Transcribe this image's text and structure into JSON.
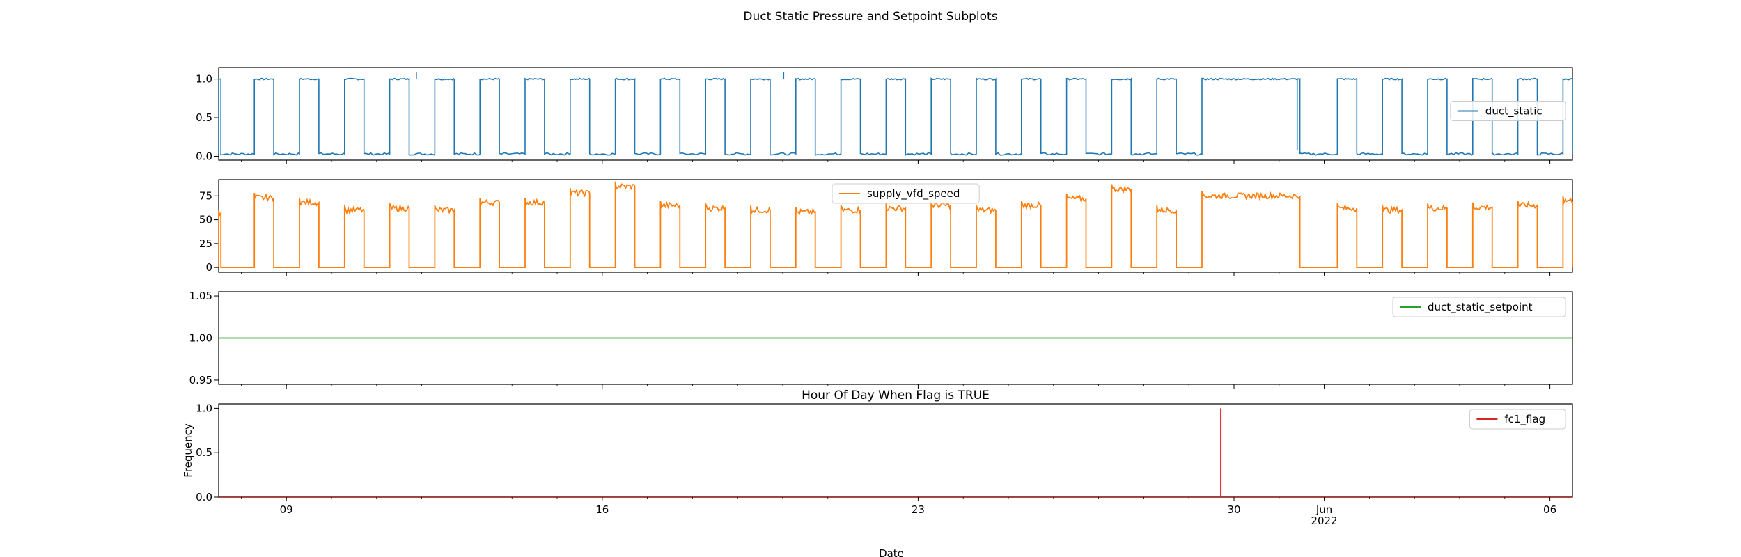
{
  "figure": {
    "suptitle": "Duct Static Pressure and Setpoint Subplots",
    "xlabel": "Date"
  },
  "colors": {
    "duct_static": "#1f77b4",
    "supply_vfd_speed": "#ff7f0e",
    "duct_static_setpoint": "#2ca02c",
    "fc1_flag": "#d62728"
  },
  "chart_data": [
    {
      "type": "line",
      "series": [
        {
          "name": "duct_static"
        }
      ],
      "ylim": [
        -0.05,
        1.15
      ],
      "yticks": [
        "0.0",
        "0.5",
        "1.0"
      ],
      "pattern": {
        "on_value": 1.0,
        "off_value": 0.03,
        "on_hours": "daily occupied 07:00-17:00, continuous May 29-31"
      },
      "legend_position": "center-right"
    },
    {
      "type": "line",
      "series": [
        {
          "name": "supply_vfd_speed"
        }
      ],
      "ylim": [
        -5,
        92
      ],
      "yticks": [
        "0",
        "25",
        "50",
        "75"
      ],
      "on_levels_pct": [
        55,
        73,
        68,
        60,
        62,
        60,
        68,
        68,
        78,
        85,
        65,
        62,
        60,
        58,
        60,
        62,
        65,
        60,
        65,
        72,
        82,
        60,
        75,
        62,
        60,
        62,
        63,
        65,
        70
      ],
      "off_value": 0,
      "legend_position": "top-center"
    },
    {
      "type": "line",
      "series": [
        {
          "name": "duct_static_setpoint"
        }
      ],
      "ylim": [
        0.945,
        1.055
      ],
      "yticks": [
        "0.95",
        "1.00",
        "1.05"
      ],
      "constant_value": 1.0,
      "legend_position": "top-right"
    },
    {
      "type": "line",
      "title": "Hour Of Day When Flag is TRUE",
      "series": [
        {
          "name": "fc1_flag"
        }
      ],
      "ylabel": "Frequency",
      "ylim": [
        0,
        1.05
      ],
      "yticks": [
        "0.0",
        "0.5",
        "1.0"
      ],
      "spike_at": "2022-05-29 17:00",
      "spike_value": 1.0,
      "legend_position": "top-right"
    }
  ],
  "x_axis": {
    "range": [
      "2022-05-07 12:00",
      "2022-06-06 12:00"
    ],
    "major_ticks": [
      {
        "date": "2022-05-09",
        "label": "09"
      },
      {
        "date": "2022-05-16",
        "label": "16"
      },
      {
        "date": "2022-05-23",
        "label": "23"
      },
      {
        "date": "2022-05-30",
        "label": "30"
      },
      {
        "date": "2022-06-01",
        "label": "Jun\n2022"
      },
      {
        "date": "2022-06-06",
        "label": "06"
      }
    ]
  }
}
